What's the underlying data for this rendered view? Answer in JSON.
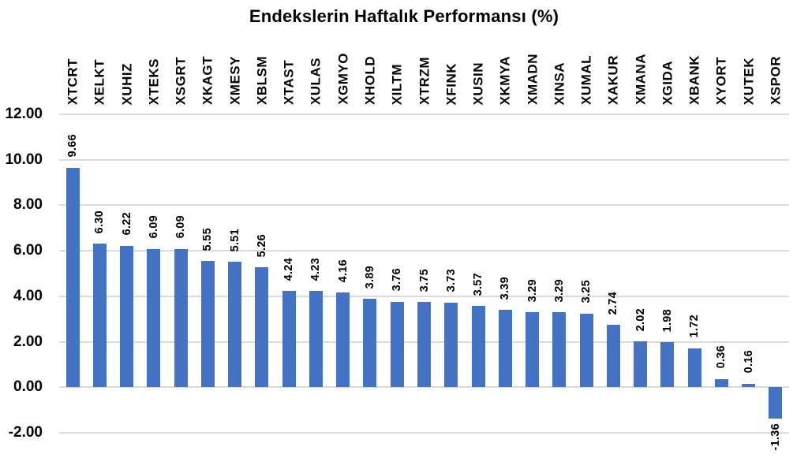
{
  "chart_data": {
    "type": "bar",
    "title": "Endekslerin Haftalık Performansı (%)",
    "categories": [
      "XTCRT",
      "XELKT",
      "XUHIZ",
      "XTEKS",
      "XSGRT",
      "XKAGT",
      "XMESY",
      "XBLSM",
      "XTAST",
      "XULAS",
      "XGMYO",
      "XHOLD",
      "XILTM",
      "XTRZM",
      "XFINK",
      "XUSIN",
      "XKMYA",
      "XMADN",
      "XINSA",
      "XUMAL",
      "XAKUR",
      "XMANA",
      "XGIDA",
      "XBANK",
      "XYORT",
      "XUTEK",
      "XSPOR"
    ],
    "values": [
      9.66,
      6.3,
      6.22,
      6.09,
      6.09,
      5.55,
      5.51,
      5.26,
      4.24,
      4.23,
      4.16,
      3.89,
      3.76,
      3.75,
      3.73,
      3.57,
      3.39,
      3.29,
      3.29,
      3.25,
      2.74,
      2.02,
      1.98,
      1.72,
      0.36,
      0.16,
      -1.36
    ],
    "value_labels": [
      "9.66",
      "6.30",
      "6.22",
      "6.09",
      "6.09",
      "5.55",
      "5.51",
      "5.26",
      "4.24",
      "4.23",
      "4.16",
      "3.89",
      "3.76",
      "3.75",
      "3.73",
      "3.57",
      "3.39",
      "3.29",
      "3.29",
      "3.25",
      "2.74",
      "2.02",
      "1.98",
      "1.72",
      "0.36",
      "0.16",
      "-1.36"
    ],
    "xlabel": "",
    "ylabel": "",
    "ylim": [
      -2,
      12
    ],
    "yticks": [
      12,
      10,
      8,
      6,
      4,
      2,
      0,
      -2
    ],
    "ytick_labels": [
      "12.00",
      "10.00",
      "8.00",
      "6.00",
      "4.00",
      "2.00",
      "0.00",
      "-2.00"
    ],
    "grid": true,
    "legend": false,
    "x_labels_position": "top-rotated-90",
    "data_labels_position": "outside-end-rotated-90",
    "bar_color": "#4472C4",
    "gridline_color": "#DADADA",
    "text_color": "#000000",
    "background_color": "#FFFFFF"
  }
}
